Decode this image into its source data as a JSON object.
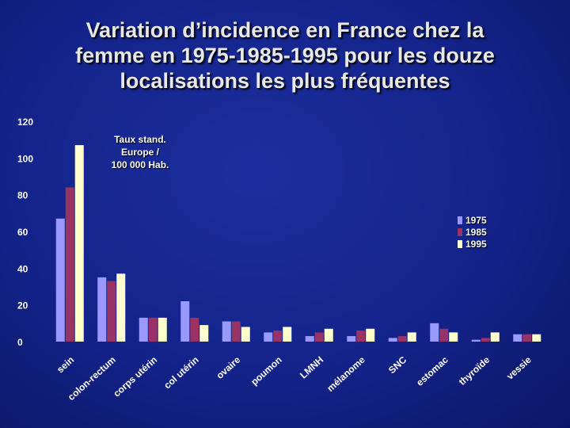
{
  "slide": {
    "title_lines": [
      "Variation d’incidence en France chez la",
      "femme en 1975-1985-1995 pour les douze",
      "localisations les plus fréquentes"
    ]
  },
  "chart_data": {
    "type": "bar",
    "title": "Variation d’incidence en France chez la femme en 1975-1985-1995 pour les douze localisations les plus fréquentes",
    "ylabel_lines": [
      "Taux stand.",
      "Europe /",
      "100 000 Hab."
    ],
    "xlabel": "",
    "ylim": [
      0,
      120
    ],
    "yticks": [
      0,
      20,
      40,
      60,
      80,
      100,
      120
    ],
    "grid": false,
    "legend_position": "right",
    "categories": [
      "sein",
      "colon-rectum",
      "corps utérin",
      "col utérin",
      "ovaire",
      "poumon",
      "LMNH",
      "mélanome",
      "SNC",
      "estomac",
      "thyroïde",
      "vessie"
    ],
    "series": [
      {
        "name": "1975",
        "color": "#9999ff",
        "values": [
          67,
          35,
          13,
          22,
          11,
          5,
          3,
          3,
          2,
          10,
          1,
          4
        ]
      },
      {
        "name": "1985",
        "color": "#993366",
        "values": [
          84,
          33,
          13,
          13,
          11,
          6,
          5,
          6,
          3,
          7,
          2,
          4
        ]
      },
      {
        "name": "1995",
        "color": "#ffffcc",
        "values": [
          107,
          37,
          13,
          9,
          8,
          8,
          7,
          7,
          5,
          5,
          5,
          4
        ]
      }
    ]
  }
}
